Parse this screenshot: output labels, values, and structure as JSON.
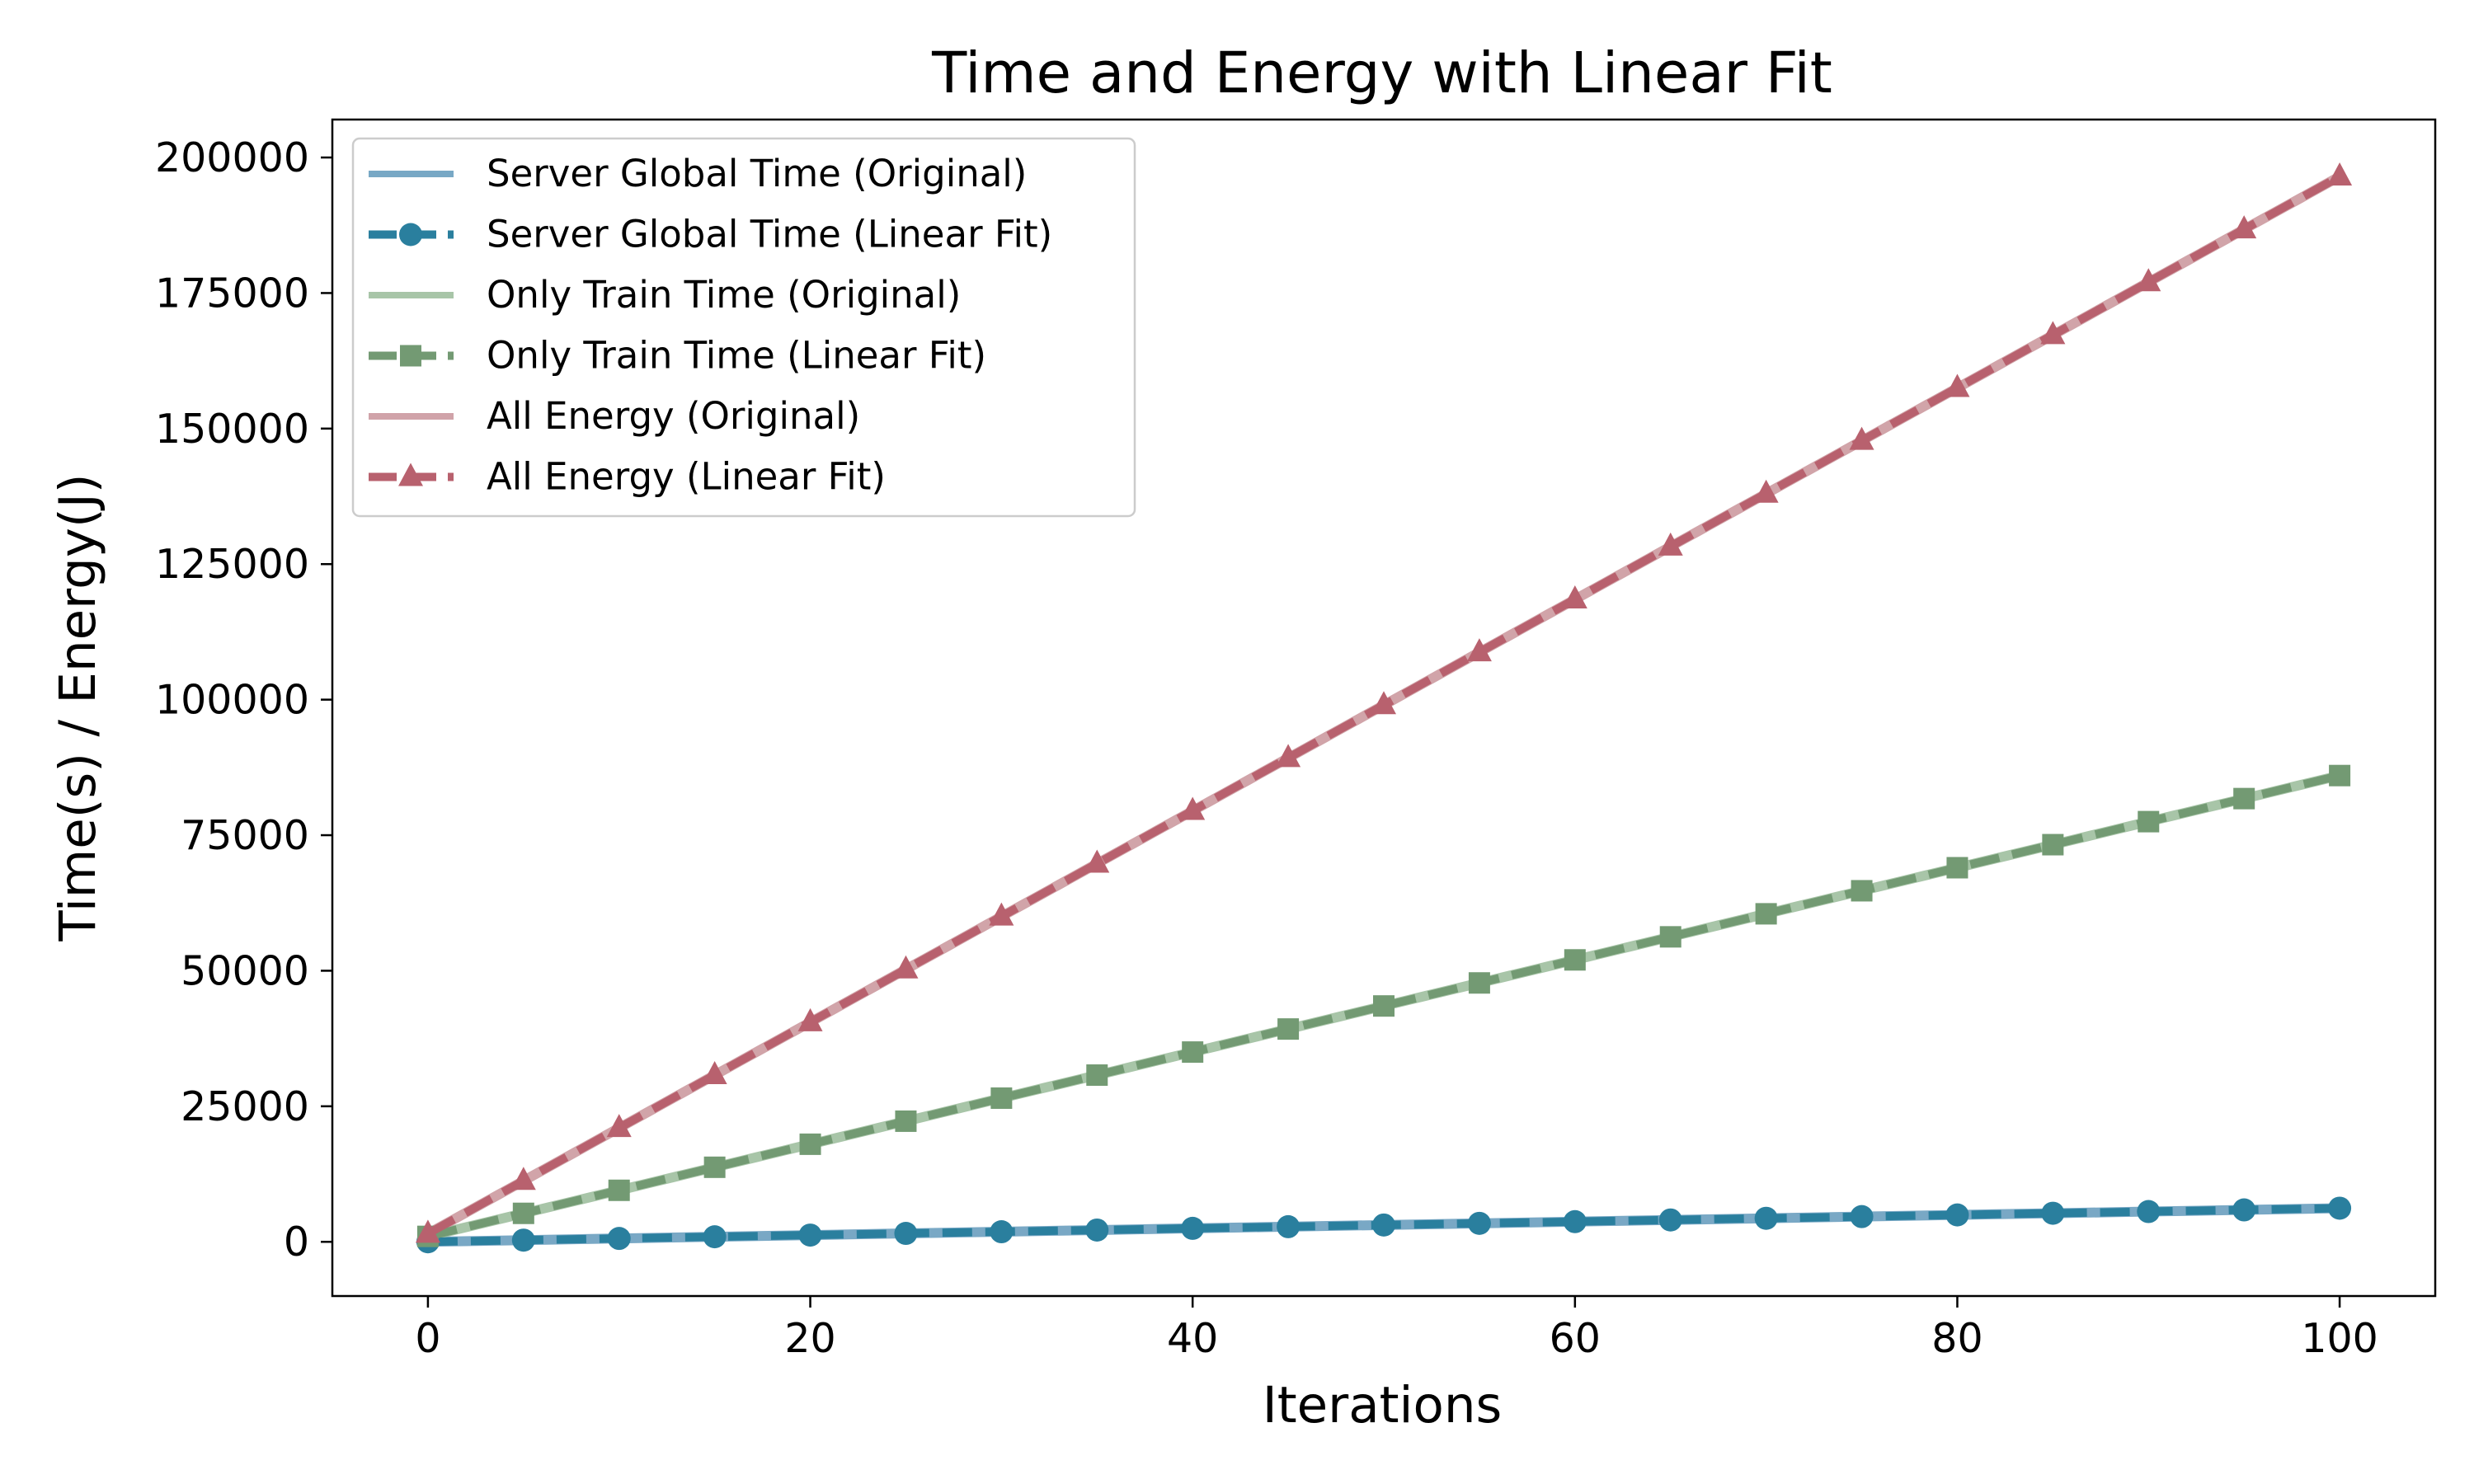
{
  "chart_data": {
    "type": "line",
    "title": "Time and Energy with Linear Fit",
    "xlabel": "Iterations",
    "ylabel": "Time(s) / Energy(J)",
    "xlim": [
      -5,
      105
    ],
    "ylim": [
      -10000,
      207000
    ],
    "x_ticks": [
      0,
      20,
      40,
      60,
      80,
      100
    ],
    "y_ticks": [
      0,
      25000,
      50000,
      75000,
      100000,
      125000,
      150000,
      175000,
      200000
    ],
    "grid": false,
    "legend_position": "upper-left",
    "x": [
      0,
      5,
      10,
      15,
      20,
      25,
      30,
      35,
      40,
      45,
      50,
      55,
      60,
      65,
      70,
      75,
      80,
      85,
      90,
      95,
      100
    ],
    "series": [
      {
        "name": "Server Global Time (Original)",
        "style": "solid",
        "marker": "none",
        "color": "#6a9fbf",
        "values": [
          0,
          310,
          620,
          930,
          1240,
          1550,
          1860,
          2170,
          2480,
          2790,
          3100,
          3410,
          3720,
          4030,
          4340,
          4650,
          4960,
          5270,
          5580,
          5890,
          6200
        ]
      },
      {
        "name": "Server Global Time (Linear Fit)",
        "style": "dashed",
        "marker": "circle",
        "color": "#2a7f9e",
        "values": [
          0,
          310,
          620,
          930,
          1240,
          1550,
          1860,
          2170,
          2480,
          2790,
          3100,
          3410,
          3720,
          4030,
          4340,
          4650,
          4960,
          5270,
          5580,
          5890,
          6200
        ]
      },
      {
        "name": "Only Train Time (Original)",
        "style": "solid",
        "marker": "none",
        "color": "#9fbf9f",
        "values": [
          1000,
          5250,
          9500,
          13750,
          18000,
          22250,
          26500,
          30750,
          35000,
          39250,
          43500,
          47750,
          52000,
          56250,
          60500,
          64750,
          69000,
          73250,
          77500,
          81750,
          86000
        ]
      },
      {
        "name": "Only Train Time (Linear Fit)",
        "style": "dashed",
        "marker": "square",
        "color": "#739a73",
        "values": [
          1000,
          5250,
          9500,
          13750,
          18000,
          22250,
          26500,
          30750,
          35000,
          39250,
          43500,
          47750,
          52000,
          56250,
          60500,
          64750,
          69000,
          73250,
          77500,
          81750,
          86000
        ]
      },
      {
        "name": "All Energy (Original)",
        "style": "solid",
        "marker": "none",
        "color": "#cc9aa0",
        "values": [
          1500,
          11250,
          21000,
          30750,
          40500,
          50250,
          60000,
          69750,
          79500,
          89250,
          99000,
          108750,
          118500,
          128250,
          138000,
          147750,
          157500,
          167250,
          177000,
          186750,
          196500
        ]
      },
      {
        "name": "All Energy (Linear Fit)",
        "style": "dashed",
        "marker": "triangle",
        "color": "#b8616e",
        "values": [
          1500,
          11250,
          21000,
          30750,
          40500,
          50250,
          60000,
          69750,
          79500,
          89250,
          99000,
          108750,
          118500,
          128250,
          138000,
          147750,
          157500,
          167250,
          177000,
          186750,
          196500
        ]
      }
    ]
  }
}
